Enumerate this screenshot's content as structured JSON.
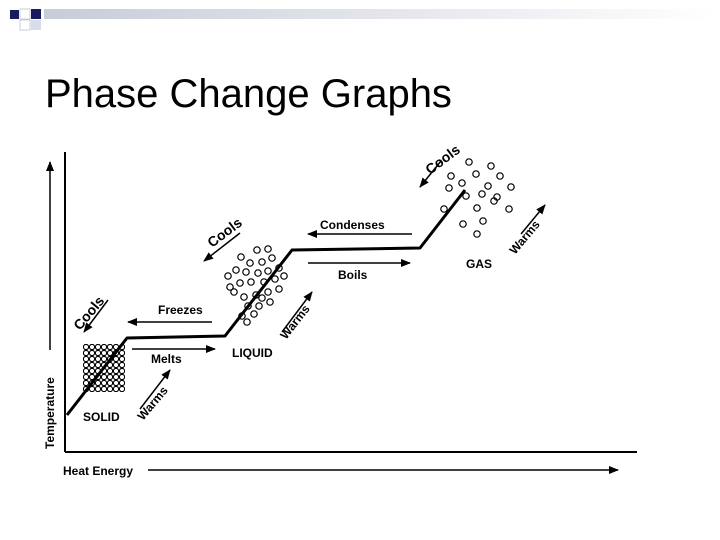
{
  "slide": {
    "title": "Phase Change Graphs",
    "colors": {
      "accent_dark": "#1a1a5e",
      "accent_light": "#d8dce8"
    }
  },
  "diagram": {
    "y_axis_label": "Temperature",
    "x_axis_label": "Heat Energy",
    "states": {
      "solid": "SOLID",
      "liquid": "LIQUID",
      "gas": "GAS"
    },
    "processes": {
      "melts": "Melts",
      "freezes": "Freezes",
      "boils": "Boils",
      "condenses": "Condenses",
      "warms": "Warms",
      "cools": "Cools"
    }
  }
}
